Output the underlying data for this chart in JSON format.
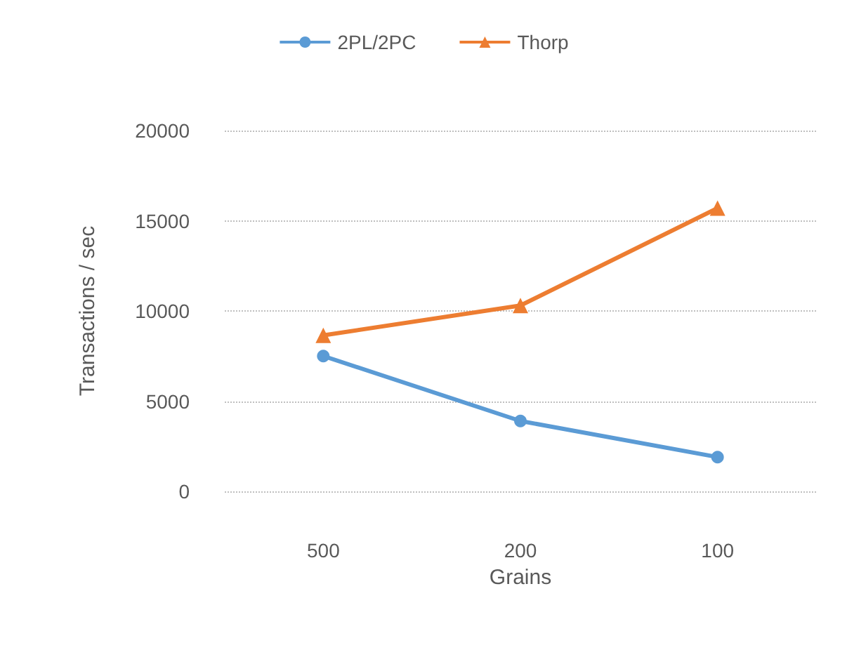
{
  "chart_data": {
    "type": "line",
    "xlabel": "Grains",
    "ylabel": "Transactions / sec",
    "categories": [
      "500",
      "200",
      "100"
    ],
    "series": [
      {
        "name": "2PL/2PC",
        "color": "#5b9bd5",
        "marker": "circle",
        "values": [
          7500,
          3900,
          1900
        ]
      },
      {
        "name": "Thorp",
        "color": "#ed7d31",
        "marker": "triangle",
        "values": [
          8650,
          10300,
          15700
        ]
      }
    ],
    "ylim": [
      0,
      20000
    ],
    "yticks": [
      0,
      5000,
      10000,
      15000,
      20000
    ],
    "grid": "y",
    "legend": "top"
  }
}
